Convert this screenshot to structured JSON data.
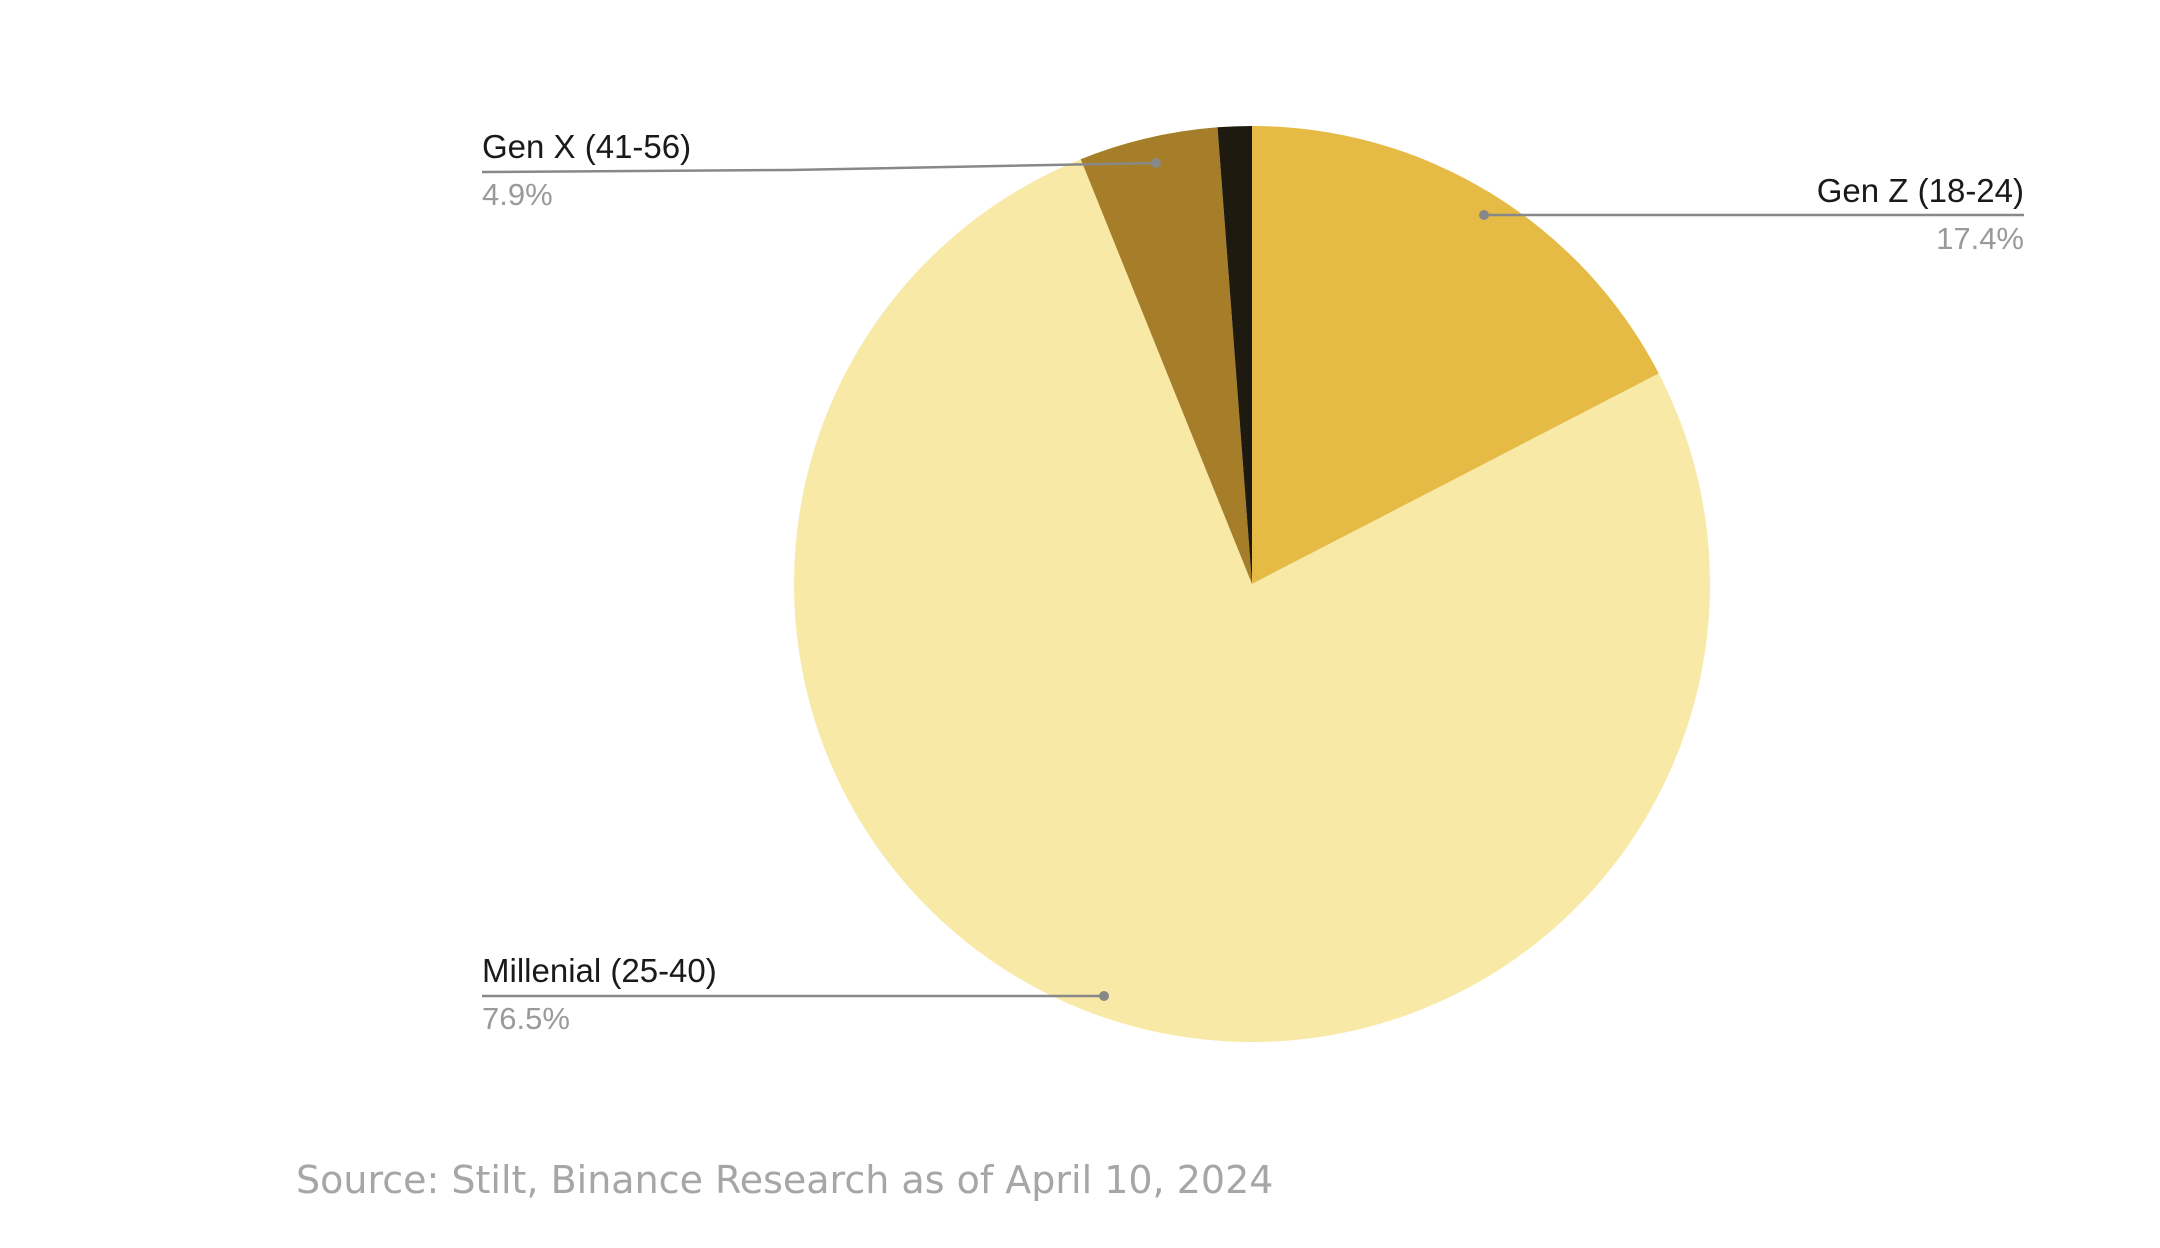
{
  "chart_data": {
    "type": "pie",
    "title": "",
    "slices": [
      {
        "name": "Gen Z (18-24)",
        "value": 17.4,
        "label": "17.4%",
        "color": "#E5BB45"
      },
      {
        "name": "Millenial (25-40)",
        "value": 76.5,
        "label": "76.5%",
        "color": "#F8E9A6"
      },
      {
        "name": "Gen X (41-56)",
        "value": 4.9,
        "label": "4.9%",
        "color": "#A67E2A"
      },
      {
        "name": "",
        "value": 1.2,
        "label": "",
        "color": "#1E1A10"
      }
    ],
    "start_angle": "top, clockwise",
    "legend": "none"
  },
  "source_text": "Source: Stilt, Binance Research as of April 10, 2024",
  "colors": {
    "leader_line": "#888888",
    "label_text": "#1a1a1a",
    "value_text": "#9a9a9a",
    "source_text": "#a6a6a6"
  }
}
